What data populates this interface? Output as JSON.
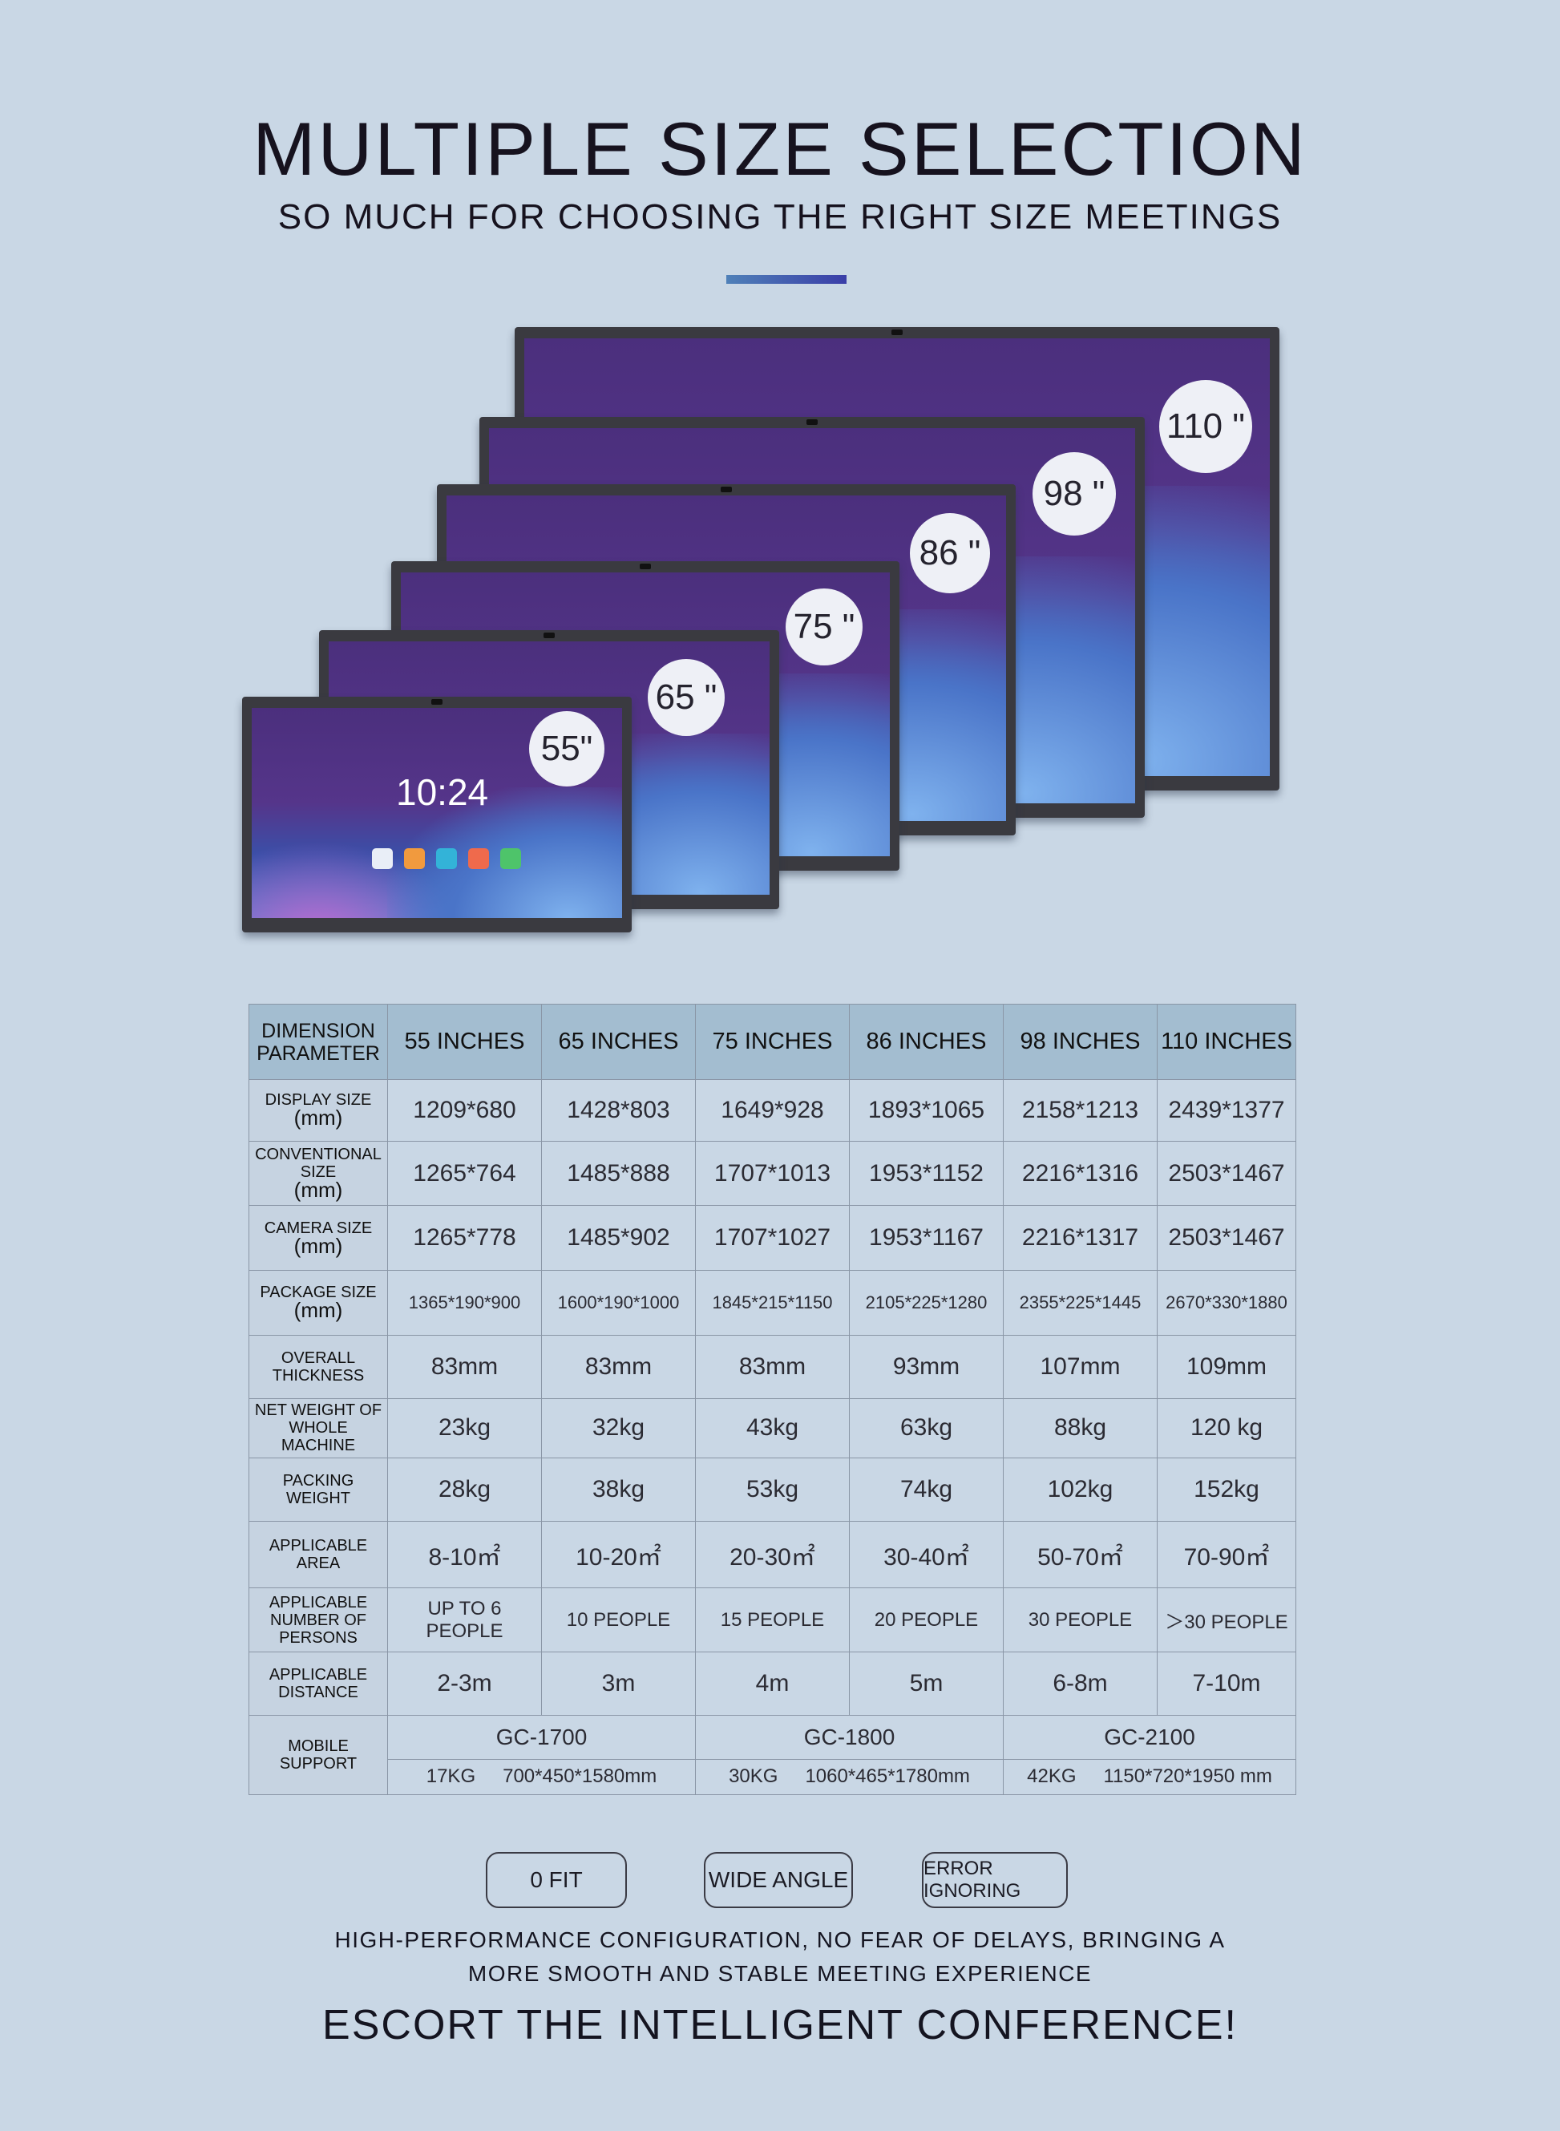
{
  "header": {
    "title": "MULTIPLE SIZE SELECTION",
    "subtitle": "SO MUCH FOR CHOOSING THE RIGHT SIZE MEETINGS"
  },
  "monitors": [
    {
      "size_label": "110 \""
    },
    {
      "size_label": "98 \""
    },
    {
      "size_label": "86 \""
    },
    {
      "size_label": "75 \""
    },
    {
      "size_label": "65 \""
    },
    {
      "size_label": "55\"",
      "clock": "10:24"
    }
  ],
  "table": {
    "header": {
      "dimension_parameter": "DIMENSION PARAMETER",
      "sizes": [
        "55 INCHES",
        "65 INCHES",
        "75 INCHES",
        "86 INCHES",
        "98 INCHES",
        "110 INCHES"
      ]
    },
    "rows": [
      {
        "label": "DISPLAY SIZE",
        "unit": "(mm)",
        "values": [
          "1209*680",
          "1428*803",
          "1649*928",
          "1893*1065",
          "2158*1213",
          "2439*1377"
        ]
      },
      {
        "label": "CONVENTIONAL SIZE",
        "unit": "(mm)",
        "values": [
          "1265*764",
          "1485*888",
          "1707*1013",
          "1953*1152",
          "2216*1316",
          "2503*1467"
        ]
      },
      {
        "label": "CAMERA SIZE",
        "unit": "(mm)",
        "values": [
          "1265*778",
          "1485*902",
          "1707*1027",
          "1953*1167",
          "2216*1317",
          "2503*1467"
        ]
      },
      {
        "label": "PACKAGE SIZE",
        "unit": "(mm)",
        "values": [
          "1365*190*900",
          "1600*190*1000",
          "1845*215*1150",
          "2105*225*1280",
          "2355*225*1445",
          "2670*330*1880"
        ]
      },
      {
        "label": "OVERALL THICKNESS",
        "values": [
          "83mm",
          "83mm",
          "83mm",
          "93mm",
          "107mm",
          "109mm"
        ]
      },
      {
        "label": "NET WEIGHT OF WHOLE MACHINE",
        "values": [
          "23kg",
          "32kg",
          "43kg",
          "63kg",
          "88kg",
          "120 kg"
        ]
      },
      {
        "label": "PACKING WEIGHT",
        "values": [
          "28kg",
          "38kg",
          "53kg",
          "74kg",
          "102kg",
          "152kg"
        ]
      },
      {
        "label": "APPLICABLE AREA",
        "values": [
          "8-10㎡",
          "10-20㎡",
          "20-30㎡",
          "30-40㎡",
          "50-70㎡",
          "70-90㎡"
        ]
      },
      {
        "label": "APPLICABLE NUMBER OF PERSONS",
        "values": [
          "UP TO 6 PEOPLE",
          "10 PEOPLE",
          "15 PEOPLE",
          "20 PEOPLE",
          "30 PEOPLE",
          "＞30 PEOPLE"
        ]
      },
      {
        "label": "APPLICABLE DISTANCE",
        "values": [
          "2-3m",
          "3m",
          "4m",
          "5m",
          "6-8m",
          "7-10m"
        ]
      }
    ],
    "mobile_support": {
      "label": "MOBILE SUPPORT",
      "models": [
        {
          "name": "GC-1700",
          "weight": "17KG",
          "dimensions": "700*450*1580mm"
        },
        {
          "name": "GC-1800",
          "weight": "30KG",
          "dimensions": "1060*465*1780mm"
        },
        {
          "name": "GC-2100",
          "weight": "42KG",
          "dimensions": "1150*720*1950 mm"
        }
      ]
    }
  },
  "features": [
    "0 FIT",
    "WIDE ANGLE",
    "ERROR IGNORING"
  ],
  "footer": {
    "line1": "HIGH-PERFORMANCE CONFIGURATION, NO FEAR OF DELAYS, BRINGING A",
    "line2": "MORE SMOOTH AND STABLE MEETING EXPERIENCE",
    "slogan": "ESCORT THE INTELLIGENT CONFERENCE!"
  },
  "colors": {
    "background": "#c9d7e5",
    "table_header": "#a3bdd0",
    "row_header": "#c6d3e1",
    "accent": "#3a3ea8"
  }
}
